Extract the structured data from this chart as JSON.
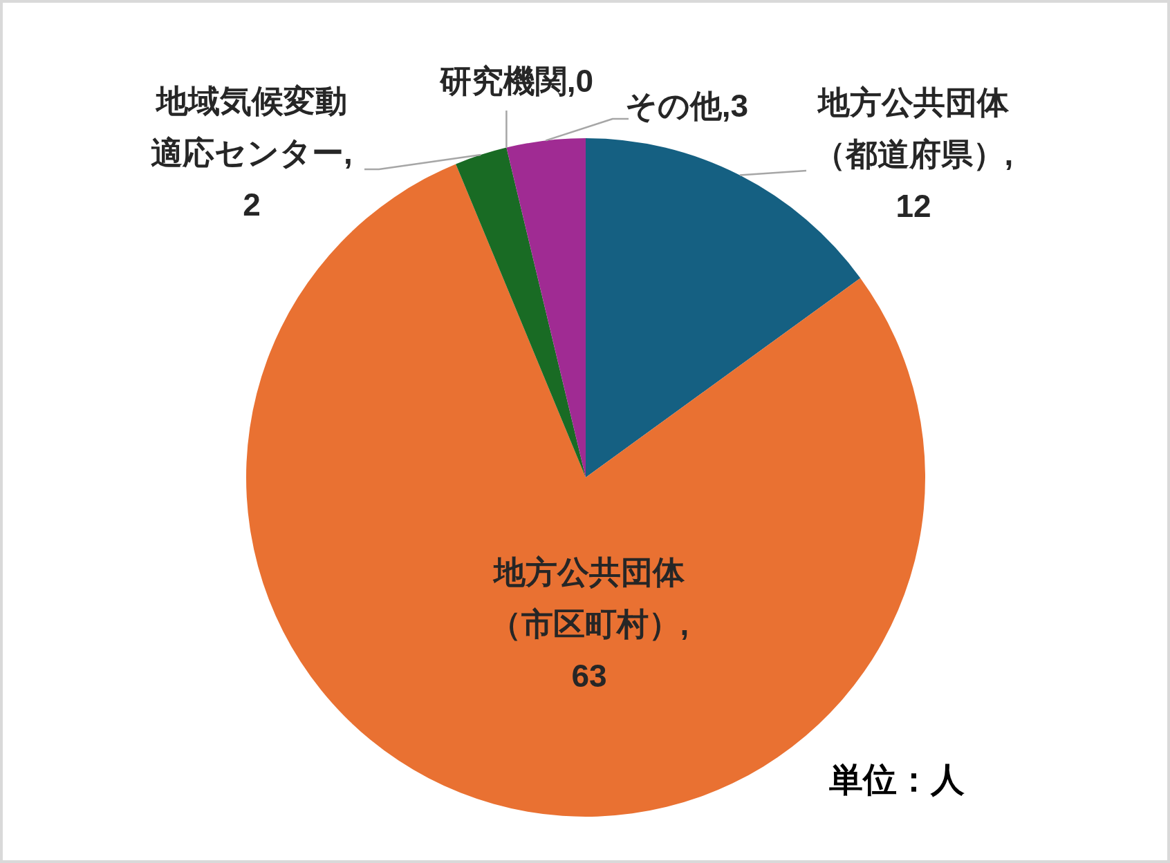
{
  "chart_data": {
    "type": "pie",
    "categories": [
      "地方公共団体（都道府県）",
      "地方公共団体（市区町村）",
      "地域気候変動適応センター",
      "研究機関",
      "その他"
    ],
    "values": [
      12,
      63,
      2,
      0,
      3
    ],
    "value_labels": [
      ",12",
      ",63",
      ",2",
      ",0",
      ",3"
    ],
    "colors": [
      "#156082",
      "#e97132",
      "#196b24",
      null,
      "#a02b93"
    ],
    "annotations": [
      "単位：人"
    ]
  }
}
